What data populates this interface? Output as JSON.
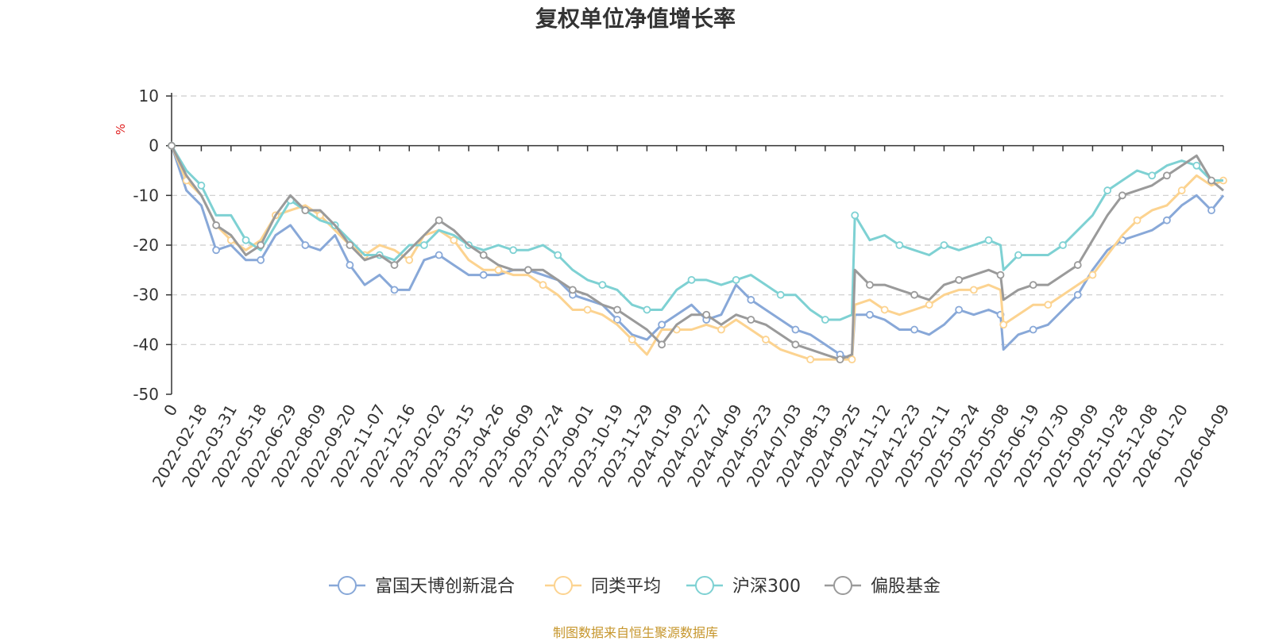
{
  "chart_data": {
    "type": "line",
    "title": "复权单位净值增长率",
    "ylabel": "%",
    "ylim": [
      -50,
      10
    ],
    "yticks": [
      10,
      0,
      -10,
      -20,
      -30,
      -40,
      -50
    ],
    "grid": true,
    "legend_position": "bottom-center",
    "x_tick_labels": [
      "0",
      "2022-02-18",
      "2022-03-31",
      "2022-05-18",
      "2022-06-29",
      "2022-08-09",
      "2022-09-20",
      "2022-11-07",
      "2022-12-16",
      "2023-02-02",
      "2023-03-15",
      "2023-04-26",
      "2023-06-09",
      "2023-07-24",
      "2023-09-01",
      "2023-10-19",
      "2023-11-29",
      "2024-01-09",
      "2024-02-27",
      "2024-04-09",
      "2024-05-23",
      "2024-07-03",
      "2024-08-13",
      "2024-09-25",
      "2024-11-12",
      "2024-12-23",
      "2025-02-11",
      "2025-03-24",
      "2025-05-08",
      "2025-06-19",
      "2025-07-30",
      "2025-09-09",
      "2025-10-28",
      "2025-12-08",
      "2026-01-20",
      "2026-04-09"
    ],
    "x_tick_positions": [
      0,
      1,
      2,
      3,
      4,
      5,
      6,
      7,
      8,
      9,
      10,
      11,
      12,
      13,
      14,
      15,
      16,
      17,
      18,
      19,
      20,
      21,
      22,
      23,
      24,
      25,
      26,
      27,
      28,
      29,
      30,
      31,
      32,
      33,
      34,
      35.4
    ],
    "x": [
      0,
      0.5,
      1,
      1.5,
      2,
      2.5,
      3,
      3.5,
      4,
      4.5,
      5,
      5.5,
      6,
      6.5,
      7,
      7.5,
      8,
      8.5,
      9,
      9.5,
      10,
      10.5,
      11,
      11.5,
      12,
      12.5,
      13,
      13.5,
      14,
      14.5,
      15,
      15.5,
      16,
      16.5,
      17,
      17.5,
      18,
      18.5,
      19,
      19.5,
      20,
      20.5,
      21,
      21.5,
      22,
      22.5,
      22.9,
      23,
      23.5,
      24,
      24.5,
      25,
      25.5,
      26,
      26.5,
      27,
      27.5,
      27.9,
      28,
      28.5,
      29,
      29.5,
      30,
      30.5,
      31,
      31.5,
      32,
      32.5,
      33,
      33.5,
      34,
      34.5,
      35,
      35.4
    ],
    "series": [
      {
        "name": "富国天博创新混合",
        "color": "#88a8d8",
        "values": [
          0,
          -9,
          -12,
          -21,
          -20,
          -23,
          -23,
          -18,
          -16,
          -20,
          -21,
          -18,
          -24,
          -28,
          -26,
          -29,
          -29,
          -23,
          -22,
          -24,
          -26,
          -26,
          -26,
          -25,
          -25,
          -26,
          -27,
          -30,
          -31,
          -32,
          -35,
          -38,
          -39,
          -36,
          -34,
          -32,
          -35,
          -34,
          -28,
          -31,
          -33,
          -35,
          -37,
          -38,
          -40,
          -42,
          -43,
          -34,
          -34,
          -35,
          -37,
          -37,
          -38,
          -36,
          -33,
          -34,
          -33,
          -34,
          -41,
          -38,
          -37,
          -36,
          -33,
          -30,
          -25,
          -21,
          -19,
          -18,
          -17,
          -15,
          -12,
          -10,
          -13,
          -10
        ]
      },
      {
        "name": "同类平均",
        "color": "#fcd390",
        "values": [
          0,
          -7,
          -10,
          -16,
          -19,
          -21,
          -19,
          -14,
          -13,
          -12,
          -14,
          -17,
          -20,
          -22,
          -20,
          -21,
          -23,
          -18,
          -17,
          -19,
          -23,
          -25,
          -25,
          -26,
          -26,
          -28,
          -30,
          -33,
          -33,
          -34,
          -36,
          -39,
          -42,
          -37,
          -37,
          -37,
          -36,
          -37,
          -35,
          -37,
          -39,
          -41,
          -42,
          -43,
          -43,
          -43,
          -43,
          -32,
          -31,
          -33,
          -34,
          -33,
          -32,
          -30,
          -29,
          -29,
          -28,
          -29,
          -36,
          -34,
          -32,
          -32,
          -30,
          -28,
          -26,
          -22,
          -18,
          -15,
          -13,
          -12,
          -9,
          -6,
          -8,
          -7
        ]
      },
      {
        "name": "沪深300",
        "color": "#7ed1d3",
        "values": [
          0,
          -5,
          -8,
          -14,
          -14,
          -19,
          -21,
          -16,
          -11,
          -13,
          -15,
          -16,
          -19,
          -22,
          -22,
          -23,
          -20,
          -20,
          -17,
          -18,
          -20,
          -21,
          -20,
          -21,
          -21,
          -20,
          -22,
          -25,
          -27,
          -28,
          -29,
          -32,
          -33,
          -33,
          -29,
          -27,
          -27,
          -28,
          -27,
          -26,
          -28,
          -30,
          -30,
          -33,
          -35,
          -35,
          -34,
          -14,
          -19,
          -18,
          -20,
          -21,
          -22,
          -20,
          -21,
          -20,
          -19,
          -20,
          -25,
          -22,
          -22,
          -22,
          -20,
          -17,
          -14,
          -9,
          -7,
          -5,
          -6,
          -4,
          -3,
          -4,
          -7,
          -7
        ]
      },
      {
        "name": "偏股基金",
        "color": "#9a9a9a",
        "values": [
          0,
          -6,
          -10,
          -16,
          -18,
          -22,
          -20,
          -14,
          -10,
          -13,
          -13,
          -16,
          -20,
          -23,
          -22,
          -24,
          -21,
          -18,
          -15,
          -17,
          -20,
          -22,
          -24,
          -25,
          -25,
          -25,
          -27,
          -29,
          -30,
          -32,
          -33,
          -35,
          -37,
          -40,
          -36,
          -34,
          -34,
          -36,
          -34,
          -35,
          -36,
          -38,
          -40,
          -41,
          -42,
          -43,
          -42,
          -25,
          -28,
          -28,
          -29,
          -30,
          -31,
          -28,
          -27,
          -26,
          -25,
          -26,
          -31,
          -29,
          -28,
          -28,
          -26,
          -24,
          -19,
          -14,
          -10,
          -9,
          -8,
          -6,
          -4,
          -2,
          -7,
          -9
        ]
      }
    ]
  },
  "legend": [
    "富国天博创新混合",
    "同类平均",
    "沪深300",
    "偏股基金"
  ],
  "source_note": "制图数据来自恒生聚源数据库"
}
